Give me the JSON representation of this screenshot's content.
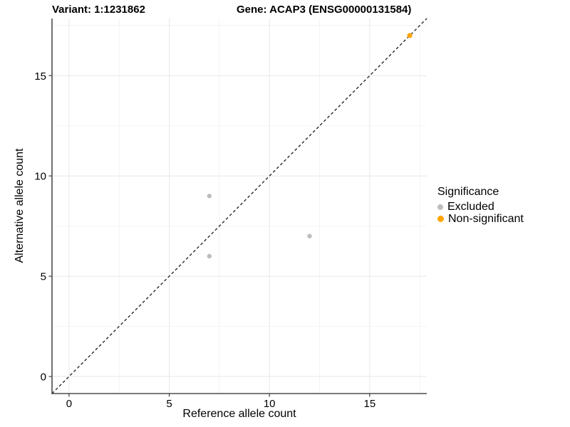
{
  "titles": {
    "variant": "Variant: 1:1231862",
    "gene": "Gene: ACAP3 (ENSG00000131584)"
  },
  "chart_data": {
    "type": "scatter",
    "xlabel": "Reference allele count",
    "ylabel": "Alternative allele count",
    "xlim": [
      -0.85,
      17.85
    ],
    "ylim": [
      -0.85,
      17.85
    ],
    "x_ticks": [
      0,
      5,
      10,
      15
    ],
    "y_ticks": [
      0,
      5,
      10,
      15
    ],
    "minor_gridlines": [
      2.5,
      7.5,
      12.5,
      17.5
    ],
    "grid": true,
    "reference_line": {
      "type": "diagonal",
      "equation": "y = x",
      "style": "dashed"
    },
    "series": [
      {
        "name": "Excluded",
        "color": "#bdbdbd",
        "point_radius": 3.2,
        "points": [
          {
            "x": 7,
            "y": 9
          },
          {
            "x": 7,
            "y": 6
          },
          {
            "x": 12,
            "y": 7
          }
        ]
      },
      {
        "name": "Non-significant",
        "color": "#ffa500",
        "point_radius": 3.6,
        "points": [
          {
            "x": 17,
            "y": 17
          }
        ]
      }
    ],
    "legend": {
      "title": "Significance",
      "position": "right"
    }
  },
  "colors": {
    "grid_major": "#e7e7e7",
    "grid_minor": "#f2f2f2",
    "axis": "#4d4d4d",
    "reference_line": "#1a1a1a",
    "text": "#000000"
  }
}
